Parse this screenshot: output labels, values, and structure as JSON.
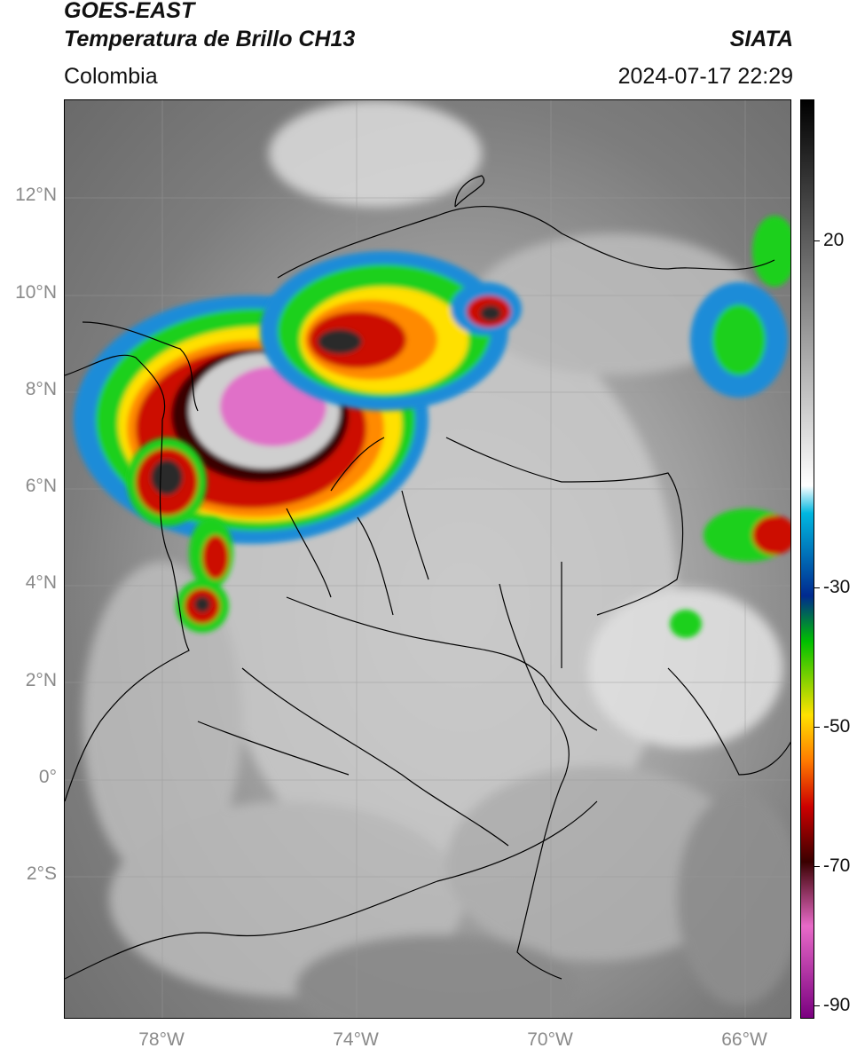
{
  "header": {
    "line1": "GOES-EAST",
    "line2": "Temperatura de Brillo CH13",
    "region": "Colombia",
    "brand": "SIATA",
    "timestamp": "2024-07-17 22:29"
  },
  "axes": {
    "lat_labels": [
      "12°N",
      "10°N",
      "8°N",
      "6°N",
      "4°N",
      "2°N",
      "0°",
      "2°S"
    ],
    "lon_labels": [
      "78°W",
      "74°W",
      "70°W",
      "66°W"
    ]
  },
  "colorbar": {
    "tick_labels": [
      "20",
      "-30",
      "-50",
      "-70",
      "-90"
    ],
    "colors": [
      "#000000",
      "#ffffff",
      "#00b7e0",
      "#002a8f",
      "#00c000",
      "#ffe100",
      "#ff7a00",
      "#cc0000",
      "#3a0000",
      "#e86ac8",
      "#7a0080"
    ]
  },
  "map_colors": {
    "cold_core": "#e070c8",
    "deep_red": "#cc1100",
    "orange": "#ff8a00",
    "yellow": "#ffe000",
    "green": "#1fd01f",
    "blue": "#0055cc",
    "cyan": "#10c8ef",
    "borders": "#000000"
  }
}
